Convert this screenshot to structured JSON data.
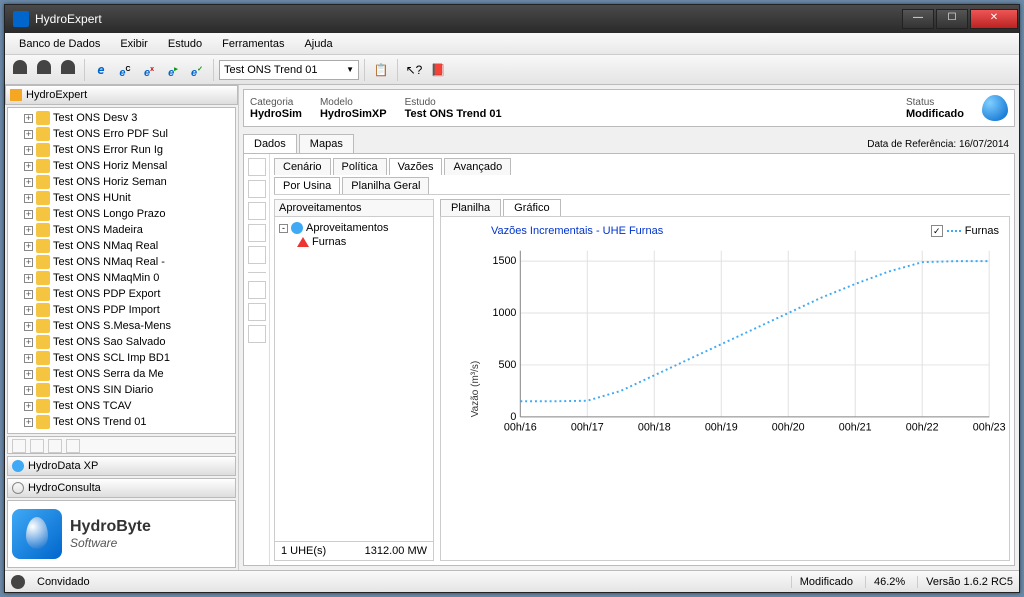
{
  "window": {
    "title": "HydroExpert"
  },
  "menu": [
    "Banco de Dados",
    "Exibir",
    "Estudo",
    "Ferramentas",
    "Ajuda"
  ],
  "toolbar_select": "Test ONS Trend 01",
  "sidebar": {
    "header": "HydroExpert",
    "items": [
      "Test ONS Desv 3",
      "Test ONS Erro PDF Sul",
      "Test ONS Error Run Ig",
      "Test ONS Horiz Mensal",
      "Test ONS Horiz Seman",
      "Test ONS HUnit",
      "Test ONS Longo Prazo",
      "Test ONS Madeira",
      "Test ONS NMaq Real",
      "Test ONS NMaq Real -",
      "Test ONS NMaqMin 0",
      "Test ONS PDP Export",
      "Test ONS PDP Import",
      "Test ONS S.Mesa-Mens",
      "Test ONS Sao Salvado",
      "Test ONS SCL Imp BD1",
      "Test ONS Serra da Me",
      "Test ONS SIN Diario",
      "Test ONS TCAV",
      "Test ONS Trend 01"
    ],
    "panel1": "HydroData XP",
    "panel2": "HydroConsulta",
    "logo_t1": "HydroByte",
    "logo_t2": "Software"
  },
  "info": {
    "cat_l": "Categoria",
    "cat_v": "HydroSim",
    "mod_l": "Modelo",
    "mod_v": "HydroSimXP",
    "est_l": "Estudo",
    "est_v": "Test ONS Trend 01",
    "sta_l": "Status",
    "sta_v": "Modificado"
  },
  "tabs_main": {
    "dados": "Dados",
    "mapas": "Mapas",
    "ref": "Data de Referência: 16/07/2014"
  },
  "tabs_sub": {
    "cen": "Cenário",
    "pol": "Política",
    "vaz": "Vazões",
    "avan": "Avançado"
  },
  "tabs_sub2": {
    "usi": "Por Usina",
    "plan": "Planilha Geral"
  },
  "aprov": {
    "header": "Aproveitamentos",
    "root": "Aproveitamentos",
    "leaf": "Furnas",
    "footer_l": "1 UHE(s)",
    "footer_r": "1312.00 MW"
  },
  "chart_tabs": {
    "plan": "Planilha",
    "graf": "Gráfico"
  },
  "chart": {
    "title": "Vazões Incrementais - UHE Furnas",
    "legend": "Furnas",
    "ylabel": "Vazão (m³/s)",
    "yticks": [
      0,
      500,
      1000,
      1500
    ],
    "xticks": [
      "00h/16",
      "00h/17",
      "00h/18",
      "00h/19",
      "00h/20",
      "00h/21",
      "00h/22",
      "00h/23"
    ],
    "ylim": [
      0,
      1600
    ],
    "series_color": "#3fa9f5",
    "grid_color": "#e0e0e0",
    "data": [
      [
        0,
        150
      ],
      [
        0.5,
        150
      ],
      [
        1,
        155
      ],
      [
        1.5,
        250
      ],
      [
        2,
        400
      ],
      [
        2.5,
        550
      ],
      [
        3,
        700
      ],
      [
        3.5,
        850
      ],
      [
        4,
        1000
      ],
      [
        4.5,
        1150
      ],
      [
        5,
        1280
      ],
      [
        5.5,
        1400
      ],
      [
        6,
        1490
      ],
      [
        6.5,
        1500
      ],
      [
        7,
        1500
      ]
    ]
  },
  "status": {
    "user": "Convidado",
    "mod": "Modificado",
    "pct": "46.2%",
    "ver": "Versão 1.6.2 RC5"
  }
}
